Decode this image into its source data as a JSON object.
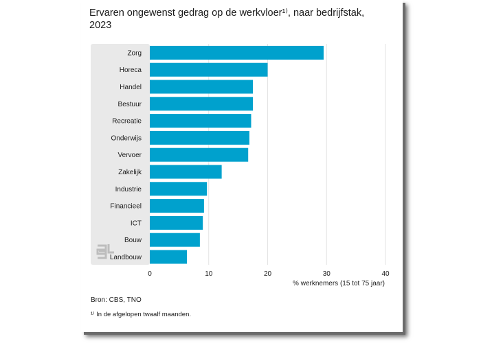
{
  "title": "Ervaren ongewenst gedrag op de werkvloer¹⁾, naar bedrijfstak, 2023",
  "source": "Bron: CBS, TNO",
  "footnote": "¹⁾ In de afgelopen twaalf maanden.",
  "colors": {
    "bar": "#00a1cd",
    "label_panel": "#e9e9e9",
    "grid": "#e3e3e3",
    "logo": "#bdbdbd"
  },
  "logo_icon": "cbs-logo-icon",
  "chart_data": {
    "type": "bar",
    "orientation": "horizontal",
    "categories": [
      "Zorg",
      "Horeca",
      "Handel",
      "Bestuur",
      "Recreatie",
      "Onderwijs",
      "Vervoer",
      "Zakelijk",
      "Industrie",
      "Financieel",
      "ICT",
      "Bouw",
      "Landbouw"
    ],
    "values": [
      29.5,
      20.0,
      17.5,
      17.5,
      17.2,
      16.9,
      16.7,
      12.2,
      9.7,
      9.2,
      9.0,
      8.5,
      6.3
    ],
    "xlabel": "% werknemers (15 tot 75 jaar)",
    "xticks": [
      0,
      10,
      20,
      30,
      40
    ],
    "xlim": [
      0,
      40
    ],
    "grid": true
  }
}
